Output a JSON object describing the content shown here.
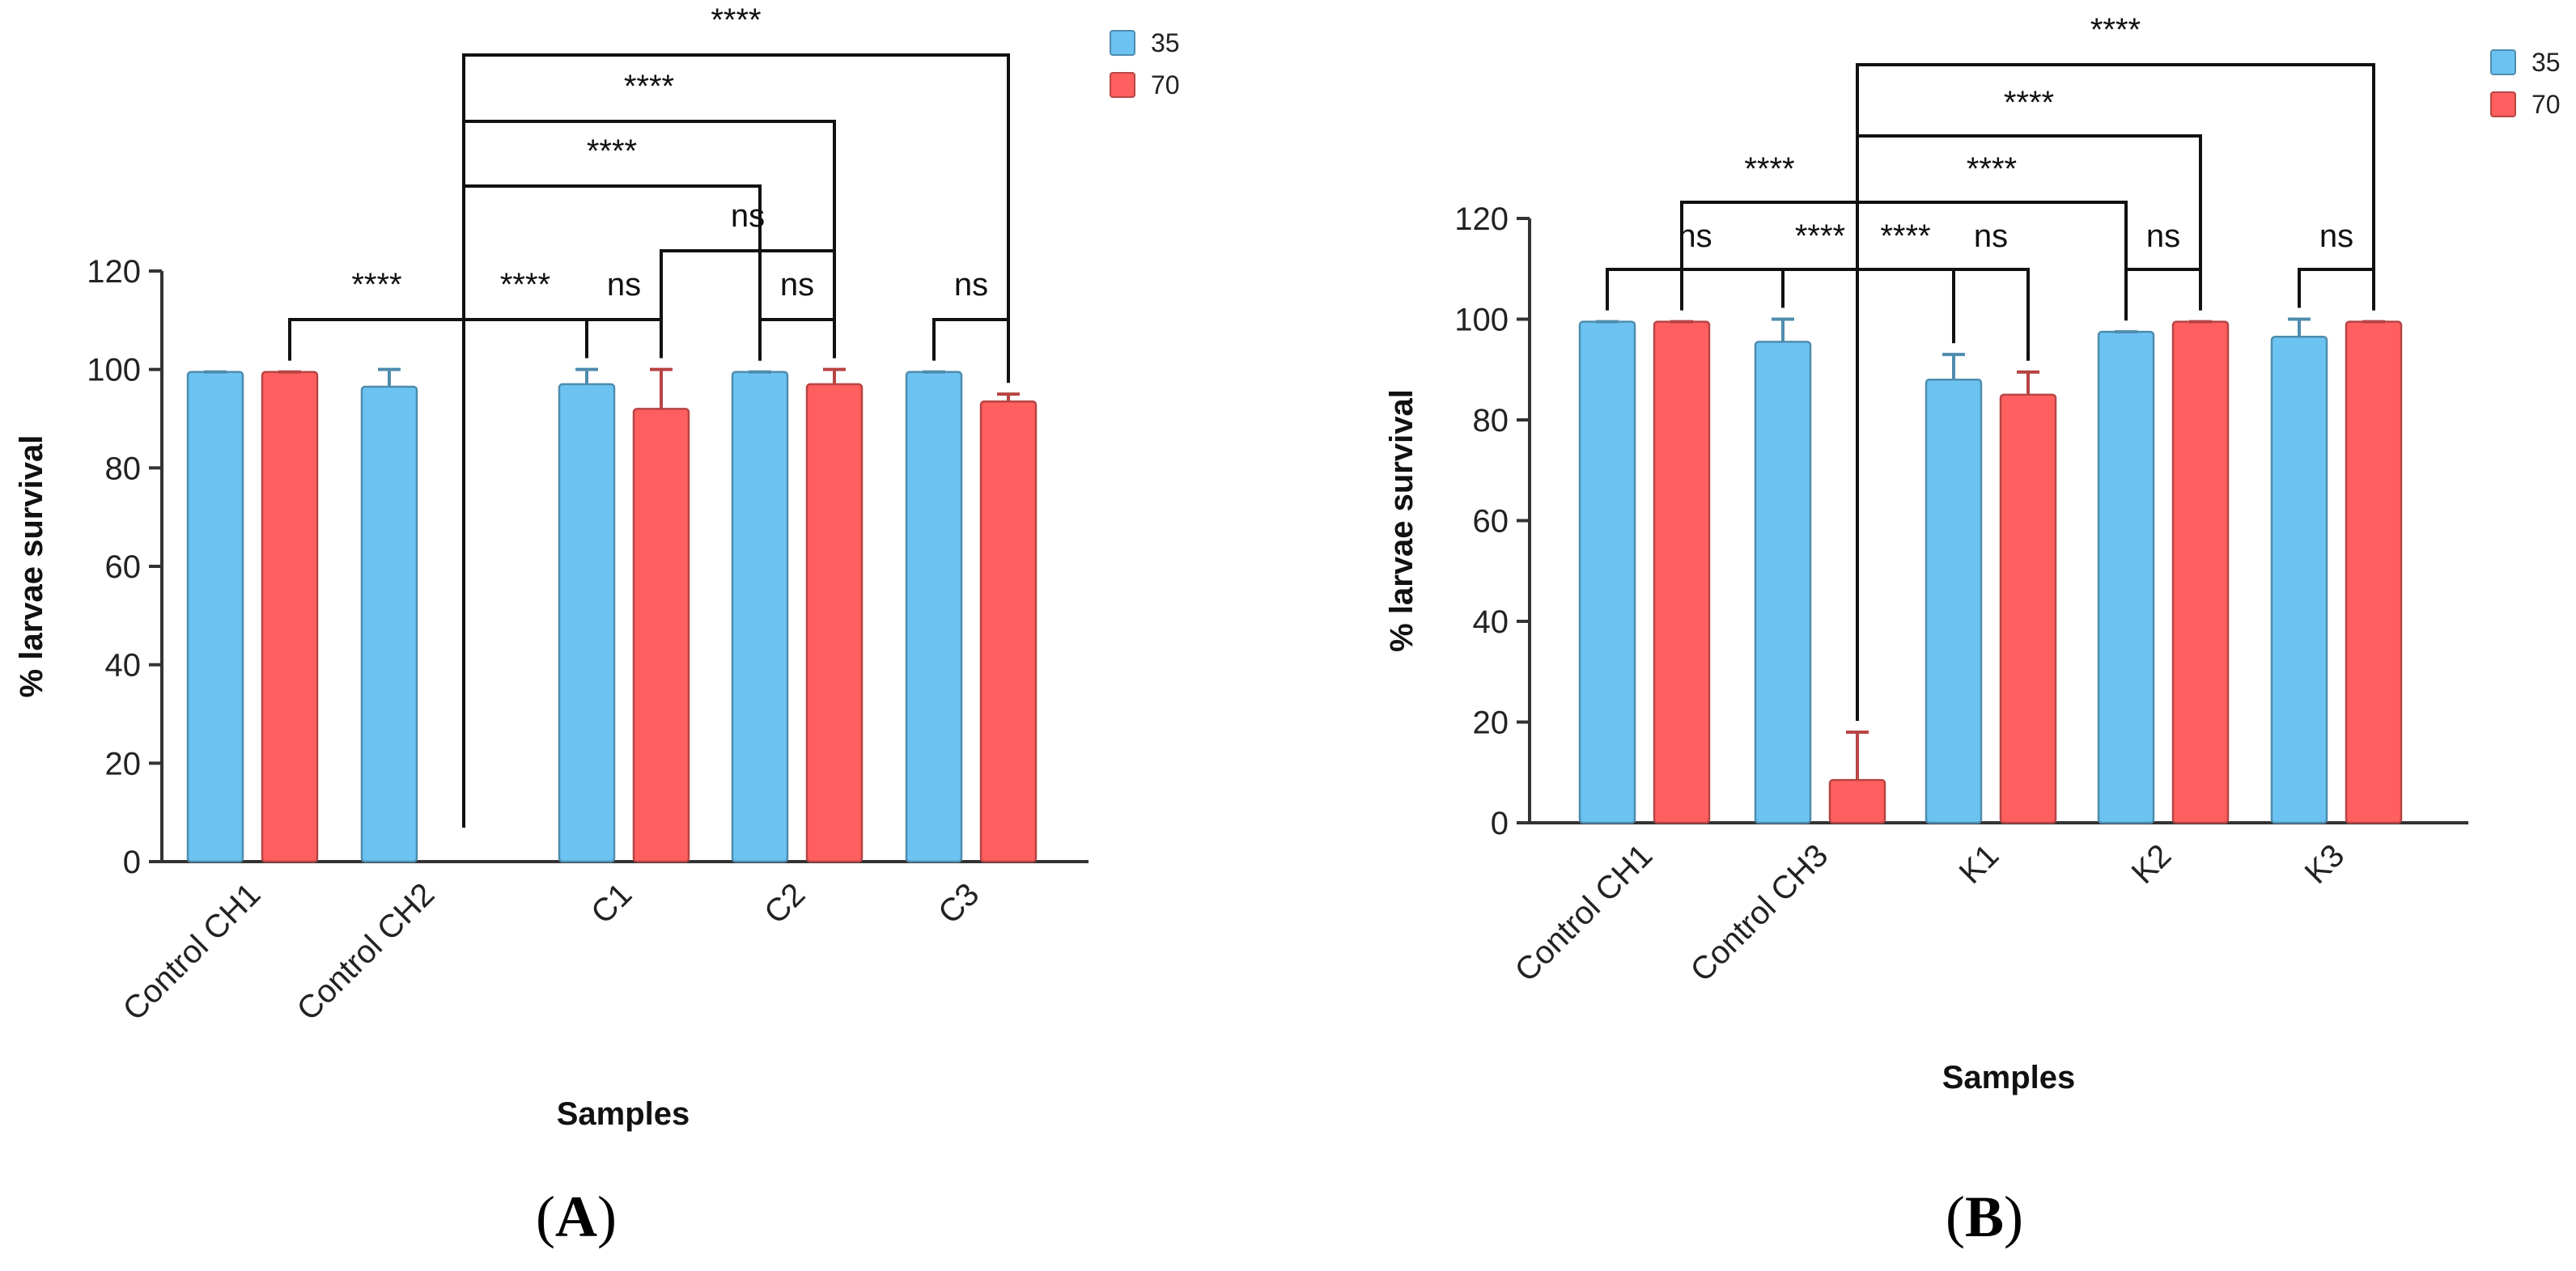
{
  "chart_data": [
    {
      "type": "bar",
      "panel_label": "(A)",
      "categories": [
        "Control CH1",
        "Control CH2",
        "C1",
        "C2",
        "C3"
      ],
      "series": [
        {
          "name": "35",
          "color": "#6CC3F2",
          "values": [
            99.5,
            96.5,
            97,
            99.5,
            99.5
          ],
          "errors": [
            0.3,
            3.5,
            3,
            0.3,
            0.3
          ]
        },
        {
          "name": "70",
          "color": "#FF5F5F",
          "values": [
            99.5,
            null,
            92,
            97,
            93.5
          ],
          "errors": [
            0.4,
            null,
            8,
            3,
            1.5
          ]
        }
      ],
      "ylabel": "% larvae survival",
      "xlabel": "Samples",
      "ylim": [
        0,
        120
      ],
      "yticks": [
        0,
        20,
        40,
        60,
        80,
        100,
        120
      ],
      "legend": "top-right",
      "significance": [
        {
          "label": "****",
          "from": "Control CH1|70",
          "to": "Control CH2|gap"
        },
        {
          "label": "****",
          "from": "Control CH2|gap",
          "to": "C1|35"
        },
        {
          "label": "ns",
          "from": "C1|35",
          "to": "C1|70"
        },
        {
          "label": "ns",
          "from": "C2|35",
          "to": "C2|70"
        },
        {
          "label": "ns",
          "from": "C3|35",
          "to": "C3|70"
        },
        {
          "label": "ns",
          "from": "C1|70",
          "to": "C2|70"
        },
        {
          "label": "****",
          "from": "Control CH2|gap",
          "to": "C2|35"
        },
        {
          "label": "****",
          "from": "Control CH2|gap",
          "to": "C2|70"
        },
        {
          "label": "****",
          "from": "Control CH2|gap",
          "to": "C3|70"
        }
      ]
    },
    {
      "type": "bar",
      "panel_label": "(B)",
      "categories": [
        "Control CH1",
        "Control CH3",
        "K1",
        "K2",
        "K3"
      ],
      "series": [
        {
          "name": "35",
          "color": "#6CC3F2",
          "values": [
            99.5,
            95.5,
            88,
            97.5,
            96.5
          ],
          "errors": [
            0.3,
            4.5,
            5,
            0.5,
            3.5
          ]
        },
        {
          "name": "70",
          "color": "#FF5F5F",
          "values": [
            99.5,
            8.5,
            85,
            99.5,
            99.5
          ],
          "errors": [
            0.4,
            9.5,
            4.5,
            0.3,
            0.3
          ]
        }
      ],
      "ylabel": "% larvae survival",
      "xlabel": "Samples",
      "ylim": [
        0,
        120
      ],
      "yticks": [
        0,
        20,
        40,
        60,
        80,
        100,
        120
      ],
      "legend": "top-right",
      "significance": [
        {
          "label": "ns",
          "from": "Control CH1|35",
          "to": "Control CH3|35"
        },
        {
          "label": "****",
          "from": "Control CH1|70",
          "to": "Control CH3|70"
        },
        {
          "label": "****",
          "from": "Control CH3|35",
          "to": "Control CH3|70"
        },
        {
          "label": "****",
          "from": "Control CH3|70",
          "to": "K1|35"
        },
        {
          "label": "ns",
          "from": "K1|35",
          "to": "K1|70"
        },
        {
          "label": "ns",
          "from": "K2|35",
          "to": "K2|70"
        },
        {
          "label": "ns",
          "from": "K3|35",
          "to": "K3|70"
        },
        {
          "label": "****",
          "from": "Control CH3|70",
          "to": "K2|35"
        },
        {
          "label": "****",
          "from": "Control CH3|70",
          "to": "K2|70"
        },
        {
          "label": "****",
          "from": "Control CH3|70",
          "to": "K3|70"
        }
      ]
    }
  ]
}
